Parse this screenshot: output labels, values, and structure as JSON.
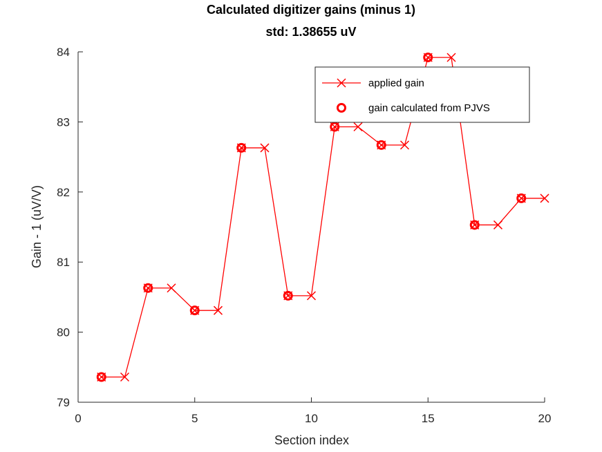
{
  "chart_data": {
    "type": "line",
    "title": "Calculated digitizer gains (minus 1)",
    "subtitle": "std: 1.38655 uV",
    "xlabel": "Section index",
    "ylabel": "Gain - 1 (uV/V)",
    "xlim": [
      0,
      20
    ],
    "ylim": [
      79,
      84
    ],
    "xticks": [
      0,
      5,
      10,
      15,
      20
    ],
    "yticks": [
      79,
      80,
      81,
      82,
      83,
      84
    ],
    "grid": false,
    "legend_position": "top-right",
    "color": "#ff0000",
    "series": [
      {
        "name": "applied gain",
        "marker": "x",
        "line": true,
        "x": [
          1,
          2,
          3,
          4,
          5,
          6,
          7,
          8,
          9,
          10,
          11,
          12,
          13,
          14,
          15,
          16,
          17,
          18,
          19,
          20
        ],
        "values": [
          79.36,
          79.36,
          80.63,
          80.63,
          80.31,
          80.31,
          82.63,
          82.63,
          80.52,
          80.52,
          82.93,
          82.93,
          82.67,
          82.67,
          83.92,
          83.92,
          81.53,
          81.53,
          81.91,
          81.91
        ]
      },
      {
        "name": "gain calculated from PJVS",
        "marker": "o",
        "line": false,
        "x": [
          1,
          3,
          5,
          7,
          9,
          11,
          13,
          15,
          17,
          19
        ],
        "values": [
          79.36,
          80.63,
          80.31,
          82.63,
          80.52,
          82.93,
          82.67,
          83.92,
          81.53,
          81.91
        ]
      }
    ]
  }
}
